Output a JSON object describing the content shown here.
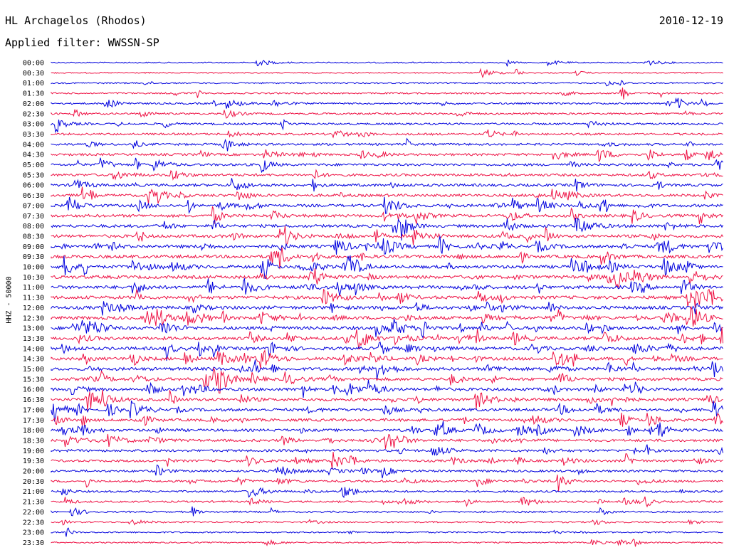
{
  "header": {
    "station": "HL Archagelos (Rhodos)",
    "date": "2010-12-19",
    "filter": "Applied filter: WWSSN-SP"
  },
  "chart_data": {
    "type": "line",
    "ylabel": "HHZ - 50000",
    "colors": [
      "#0000dd",
      "#ee1144"
    ],
    "rows": [
      "00:00",
      "00:30",
      "01:00",
      "01:30",
      "02:00",
      "02:30",
      "03:00",
      "03:30",
      "04:00",
      "04:30",
      "05:00",
      "05:30",
      "06:00",
      "06:30",
      "07:00",
      "07:30",
      "08:00",
      "08:30",
      "09:00",
      "09:30",
      "10:00",
      "10:30",
      "11:00",
      "11:30",
      "12:00",
      "12:30",
      "13:00",
      "13:30",
      "14:00",
      "14:30",
      "15:00",
      "15:30",
      "16:00",
      "16:30",
      "17:00",
      "17:30",
      "18:00",
      "18:30",
      "19:00",
      "19:30",
      "20:00",
      "20:30",
      "21:00",
      "21:30",
      "22:00",
      "22:30",
      "23:00",
      "23:30"
    ]
  }
}
